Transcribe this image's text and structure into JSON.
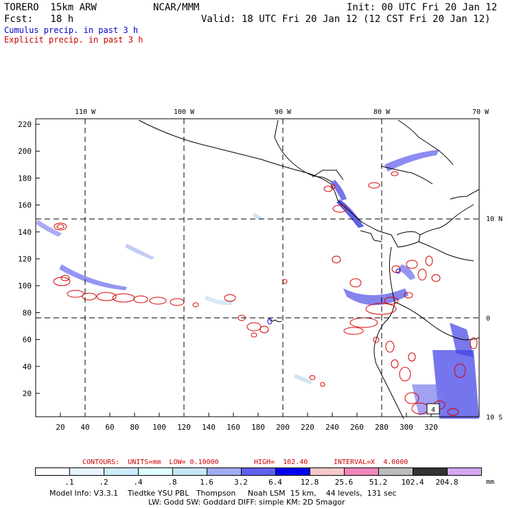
{
  "header": {
    "model": "TORERO  15km ARW",
    "org": "NCAR/MMM",
    "init": "Init: 00 UTC Fri 20 Jan 12",
    "fcst": "Fcst:   18 h",
    "valid": "Valid: 18 UTC Fri 20 Jan 12 (12 CST Fri 20 Jan 12)",
    "legend_cumulus": "Cumulus precip. in past 3 h",
    "legend_explicit": "Explicit precip. in past 3 h"
  },
  "colors": {
    "cumulus": "#0000cc",
    "explicit": "#cc0000"
  },
  "map": {
    "lon_labels": [
      "110 W",
      "100 W",
      "90 W",
      "80 W",
      "70 W"
    ],
    "lat_labels": [
      "10 N",
      "0",
      "10 S"
    ],
    "y_ticks": [
      "220",
      "200",
      "180",
      "160",
      "140",
      "120",
      "100",
      "80",
      "60",
      "40",
      "20"
    ],
    "x_ticks": [
      "20",
      "40",
      "60",
      "80",
      "100",
      "120",
      "140",
      "160",
      "180",
      "200",
      "220",
      "240",
      "260",
      "280",
      "300",
      "320"
    ],
    "box_label": "4"
  },
  "contour_info": {
    "units": "CONTOURS:  UNITS=mm  LOW= 0.10000",
    "high": "HIGH=  102.40",
    "interval": "INTERVAL=X  4.0000"
  },
  "colorbar": {
    "labels": [
      ".1",
      ".2",
      ".4",
      ".8",
      "1.6",
      "3.2",
      "6.4",
      "12.8",
      "25.6",
      "51.2",
      "102.4",
      "204.8"
    ],
    "unit": "mm",
    "colors": [
      "#ffffff",
      "#e6f4ff",
      "#cbecfb",
      "#e0ffff",
      "#c4e6f7",
      "#a0acf0",
      "#6060ee",
      "#0000ee",
      "#f7c8c8",
      "#ee88bb",
      "#bbbbbb",
      "#333333",
      "#d4a8f0"
    ]
  },
  "footer": {
    "line1": "Model Info: V3.3.1    Tiedtke YSU PBL   Thompson     Noah LSM  15 km,    44 levels,  131 sec",
    "line2": "LW: Godd SW: Goddard DIFF: simple KM: 2D Smagor"
  }
}
